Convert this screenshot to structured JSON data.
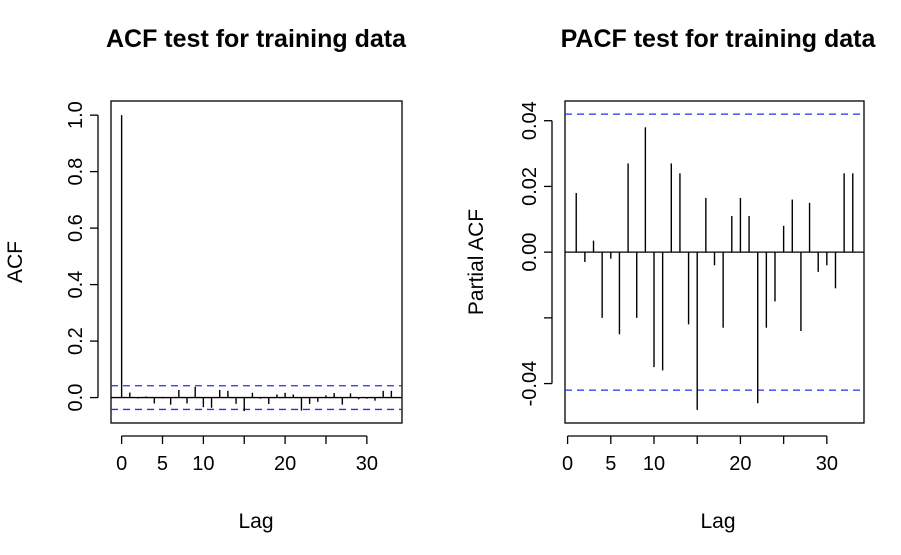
{
  "chart_data": [
    {
      "type": "bar",
      "title": "ACF test for training data",
      "xlabel": "Lag",
      "ylabel": "ACF",
      "xlim": [
        -1.3,
        34.3
      ],
      "ylim": [
        -0.09,
        1.05
      ],
      "x_ticks": [
        0,
        5,
        10,
        20,
        30
      ],
      "y_ticks": [
        "0.0",
        "0.2",
        "0.4",
        "0.6",
        "0.8",
        "1.0"
      ],
      "conf_limit": 0.042,
      "colors": {
        "bars": "#000000",
        "conf_lines": "#2233ee",
        "zero_line": "#000000"
      },
      "lags": [
        0,
        1,
        2,
        3,
        4,
        5,
        6,
        7,
        8,
        9,
        10,
        11,
        12,
        13,
        14,
        15,
        16,
        17,
        18,
        19,
        20,
        21,
        22,
        23,
        24,
        25,
        26,
        27,
        28,
        29,
        30,
        31,
        32,
        33
      ],
      "values": [
        1.0,
        0.018,
        -0.003,
        0.004,
        -0.021,
        -0.003,
        -0.025,
        0.027,
        -0.021,
        0.038,
        -0.034,
        -0.036,
        0.027,
        0.024,
        -0.022,
        -0.048,
        0.017,
        -0.004,
        -0.023,
        0.011,
        0.017,
        0.011,
        -0.046,
        -0.023,
        -0.015,
        0.008,
        0.016,
        -0.025,
        0.015,
        -0.006,
        -0.004,
        -0.011,
        0.024,
        0.024
      ]
    },
    {
      "type": "bar",
      "title": "PACF test for training data",
      "xlabel": "Lag",
      "ylabel": "Partial ACF",
      "xlim": [
        -0.3,
        34.3
      ],
      "ylim": [
        -0.052,
        0.046
      ],
      "x_ticks": [
        0,
        5,
        10,
        20,
        30
      ],
      "y_ticks": [
        "-0.04",
        "0.00",
        "0.02",
        "0.04"
      ],
      "conf_limit": 0.042,
      "colors": {
        "bars": "#000000",
        "conf_lines": "#2233ee",
        "zero_line": "#000000"
      },
      "lags": [
        1,
        2,
        3,
        4,
        5,
        6,
        7,
        8,
        9,
        10,
        11,
        12,
        13,
        14,
        15,
        16,
        17,
        18,
        19,
        20,
        21,
        22,
        23,
        24,
        25,
        26,
        27,
        28,
        29,
        30,
        31,
        32,
        33
      ],
      "values": [
        0.018,
        -0.003,
        0.0035,
        -0.02,
        -0.002,
        -0.025,
        0.027,
        -0.02,
        0.038,
        -0.035,
        -0.036,
        0.027,
        0.024,
        -0.022,
        -0.048,
        0.0165,
        -0.004,
        -0.023,
        0.011,
        0.0165,
        0.011,
        -0.046,
        -0.023,
        -0.015,
        0.008,
        0.016,
        -0.024,
        0.015,
        -0.006,
        -0.004,
        -0.011,
        0.024,
        0.024
      ]
    }
  ]
}
